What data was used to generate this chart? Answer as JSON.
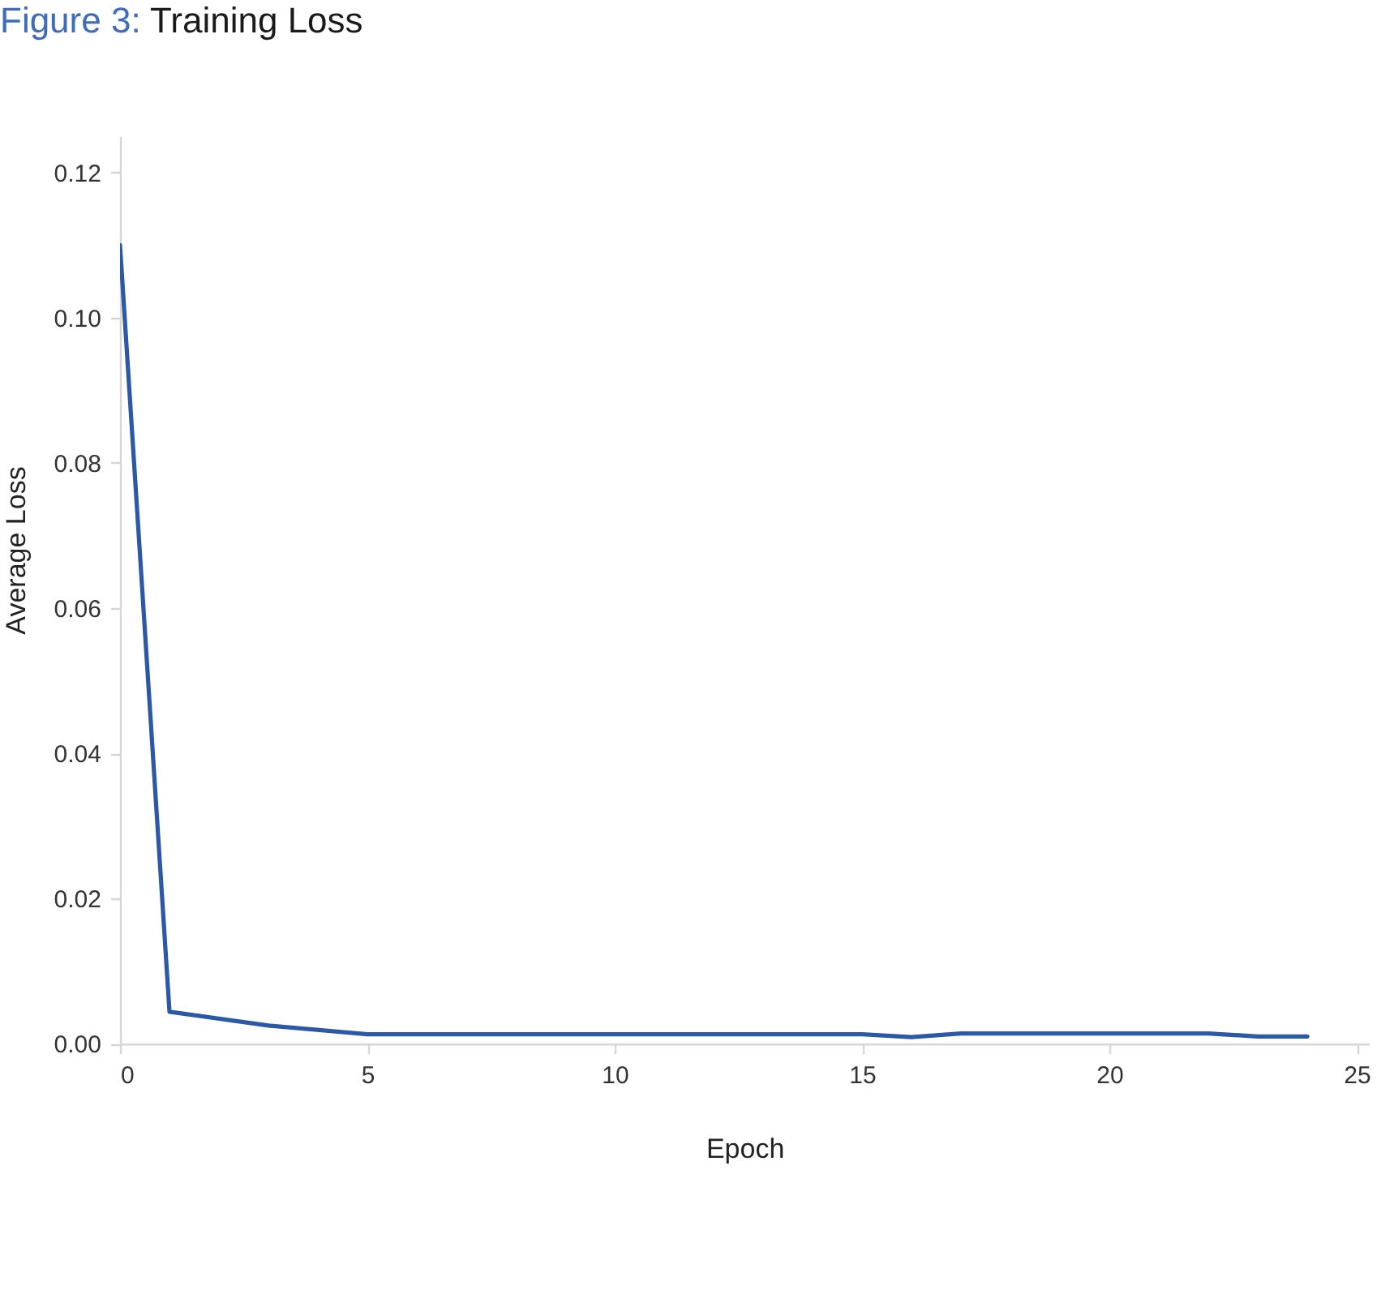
{
  "chart_data": {
    "type": "line",
    "title": "Figure 3: Training Loss",
    "xlabel": "Epoch",
    "ylabel": "Average Loss",
    "x": [
      0,
      1,
      3,
      5,
      15,
      16,
      17,
      22,
      23,
      24
    ],
    "series": [
      {
        "color": "#2c58a8",
        "values": [
          0.11,
          0.0044,
          0.0025,
          0.0013,
          0.0013,
          0.0009,
          0.0014,
          0.0014,
          0.001,
          0.001
        ]
      }
    ],
    "xlim": [
      0,
      25.25
    ],
    "ylim": [
      0,
      0.125
    ],
    "xticks": [
      0,
      5,
      10,
      15,
      20,
      25
    ],
    "yticks": [
      {
        "value": 0,
        "label": "0.00"
      },
      {
        "value": 0.02,
        "label": "0.02"
      },
      {
        "value": 0.04,
        "label": "0.04"
      },
      {
        "value": 0.06,
        "label": "0.06"
      },
      {
        "value": 0.08,
        "label": "0.08"
      },
      {
        "value": 0.1,
        "label": "0.10"
      },
      {
        "value": 0.12,
        "label": "0.12"
      }
    ],
    "grid": false,
    "marker": "none",
    "line_style": "solid"
  }
}
